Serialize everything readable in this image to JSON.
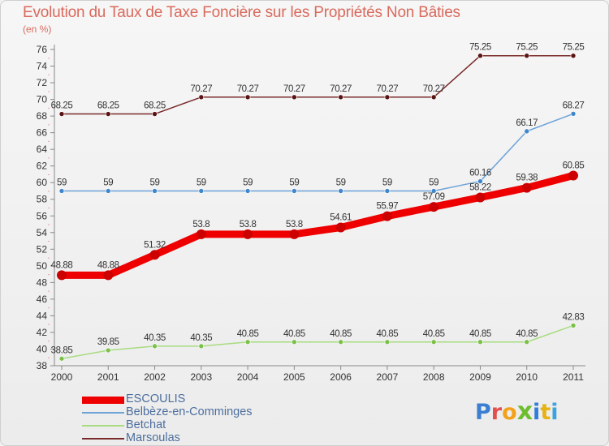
{
  "colors": {
    "title": "#d96a5c",
    "axis": "#888888",
    "grid_tick": "#d8565a",
    "label": "#333333",
    "legend_text": "#4c6e9e"
  },
  "header": {
    "title": "Evolution du Taux de Taxe Foncière sur les Propriétés Non Bâties",
    "unit": "(en %)"
  },
  "brand": {
    "letters": [
      {
        "char": "P",
        "color": "#3a7fd1"
      },
      {
        "char": "r",
        "color": "#e24f4f"
      },
      {
        "char": "o",
        "color": "#f2a11b"
      },
      {
        "char": "x",
        "color": "#6dbd2f"
      },
      {
        "char": "i",
        "color": "#2f7fd8"
      },
      {
        "char": "t",
        "color": "#e6b214"
      },
      {
        "char": "i",
        "color": "#3aa3e0"
      }
    ]
  },
  "chart_data": {
    "type": "line",
    "title": "Evolution du Taux de Taxe Foncière sur les Propriétés Non Bâties",
    "ylabel": "(en %)",
    "xlabel": "",
    "categories": [
      "2000",
      "2001",
      "2002",
      "2003",
      "2004",
      "2005",
      "2006",
      "2007",
      "2008",
      "2009",
      "2010",
      "2011"
    ],
    "ylim": [
      38,
      76
    ],
    "y_ticks": [
      38,
      40,
      42,
      44,
      46,
      48,
      50,
      52,
      54,
      56,
      58,
      60,
      62,
      64,
      66,
      68,
      70,
      72,
      74,
      76
    ],
    "series": [
      {
        "name": "Marsoulas",
        "color": "#7a2a2a",
        "dot": "#5a1414",
        "emphasis": false,
        "values": [
          68.25,
          68.25,
          68.25,
          70.27,
          70.27,
          70.27,
          70.27,
          70.27,
          70.27,
          75.25,
          75.25,
          75.25
        ],
        "labels": [
          "68.25",
          "68.25",
          "68.25",
          "70.27",
          "70.27",
          "70.27",
          "70.27",
          "70.27",
          "70.27",
          "75.25",
          "75.25",
          "75.25"
        ]
      },
      {
        "name": "Belbèze-en-Comminges",
        "color": "#6ea3d8",
        "dot": "#3f86cc",
        "emphasis": false,
        "values": [
          59,
          59,
          59,
          59,
          59,
          59,
          59,
          59,
          59,
          60.16,
          66.17,
          68.27
        ],
        "labels": [
          "59",
          "59",
          "59",
          "59",
          "59",
          "59",
          "59",
          "59",
          "59",
          "60.16",
          "66.17",
          "68.27"
        ]
      },
      {
        "name": "Betchat",
        "color": "#a8dc80",
        "dot": "#7cc04a",
        "emphasis": false,
        "values": [
          38.85,
          39.85,
          40.35,
          40.35,
          40.85,
          40.85,
          40.85,
          40.85,
          40.85,
          40.85,
          40.85,
          42.83
        ],
        "labels": [
          "38.85",
          "39.85",
          "40.35",
          "40.35",
          "40.85",
          "40.85",
          "40.85",
          "40.85",
          "40.85",
          "40.85",
          "40.85",
          "42.83"
        ]
      },
      {
        "name": "ESCOULIS",
        "color": "#ee0000",
        "dot": "#cc0000",
        "emphasis": true,
        "values": [
          48.88,
          48.88,
          51.32,
          53.8,
          53.8,
          53.8,
          54.61,
          55.97,
          57.09,
          58.22,
          59.38,
          60.85
        ],
        "labels": [
          "48.88",
          "48.88",
          "51.32",
          "53.8",
          "53.8",
          "53.8",
          "54.61",
          "55.97",
          "57.09",
          "58.22",
          "59.38",
          "60.85"
        ]
      }
    ],
    "legend_order": [
      "ESCOULIS",
      "Belbèze-en-Comminges",
      "Betchat",
      "Marsoulas"
    ],
    "legend_position": "bottom-left",
    "grid": false
  }
}
